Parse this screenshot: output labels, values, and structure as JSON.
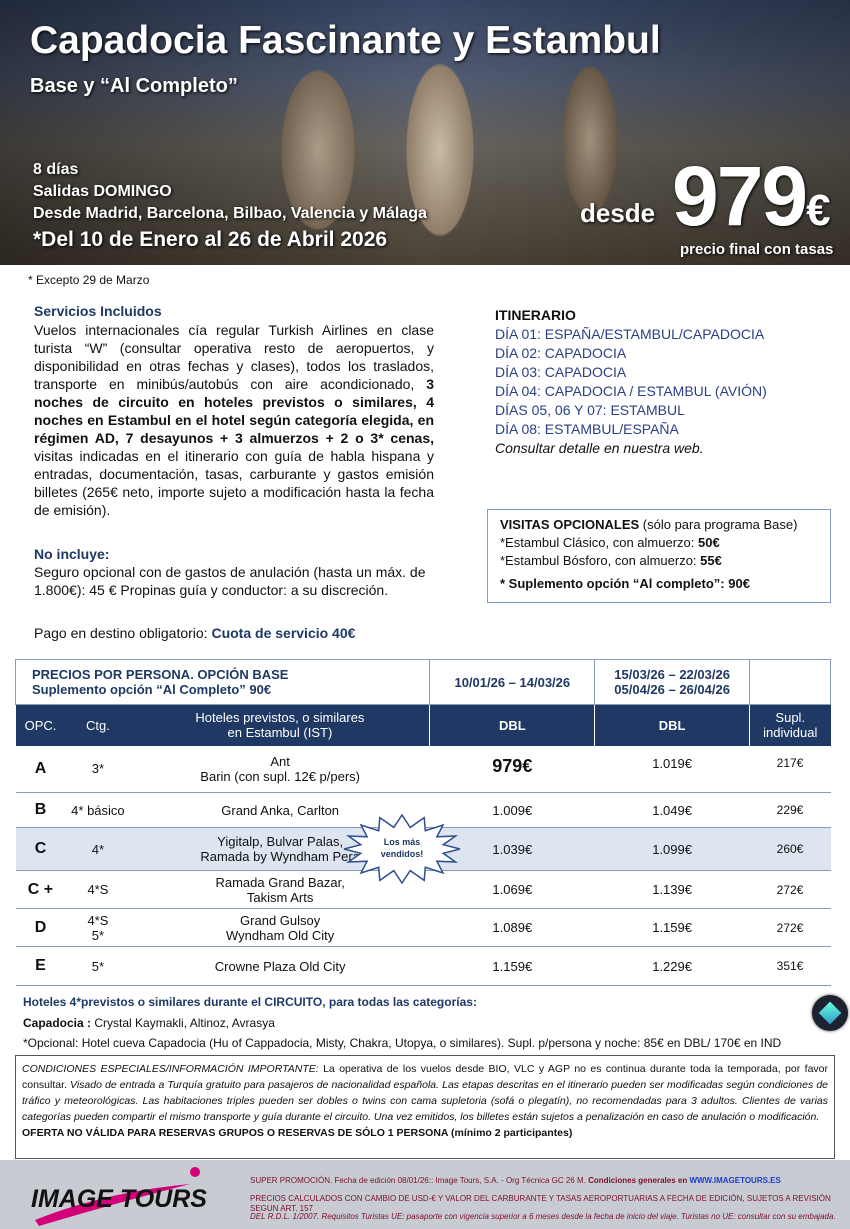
{
  "hero": {
    "title": "Capadocia Fascinante y Estambul",
    "subtitle": "Base y “Al Completo”",
    "duration": "8 días",
    "departures": "Salidas DOMINGO",
    "origins": "Desde Madrid, Barcelona, Bilbao, Valencia y Málaga",
    "dates": "*Del 10 de Enero al 26 de Abril 2026",
    "from_label": "desde",
    "price": "979",
    "currency": "€",
    "price_note": "precio final con tasas"
  },
  "except_note": "* Excepto 29 de Marzo",
  "services": {
    "heading": "Servicios Incluidos",
    "text1": "Vuelos internacionales cía regular Turkish Airlines en clase turista “W” (consultar operativa resto de aeropuertos, y disponibilidad en otras fechas y clases), todos los traslados, transporte en minibús/autobús con aire acondicionado, ",
    "bold": "3 noches de circuito en hoteles previstos o similares, 4 noches en Estambul en el hotel según categoría elegida, en régimen AD, 7 desayunos + 3 almuerzos + 2 o 3* cenas,",
    "text2": " visitas indicadas en el itinerario con guía de habla hispana y entradas, documentación, tasas, carburante y gastos emisión billetes (265€ neto, importe sujeto a modificación hasta la fecha de emisión)."
  },
  "not_included": {
    "heading": "No incluye:",
    "text": "Seguro opcional con de gastos de anulación (hasta un máx. de 1.800€): 45 €  Propinas guía y conductor: a su discreción."
  },
  "payment": {
    "label": "Pago en destino obligatorio: ",
    "value": "Cuota de servicio 40€"
  },
  "itinerary": {
    "heading": "ITINERARIO",
    "days": [
      "DÍA 01: ESPAÑA/ESTAMBUL/CAPADOCIA",
      "DÍA 02: CAPADOCIA",
      "DÍA 03: CAPADOCIA",
      "DÍA 04: CAPADOCIA / ESTAMBUL (AVIÓN)",
      "DÍAS 05, 06 Y 07: ESTAMBUL",
      "DÍA 08: ESTAMBUL/ESPAÑA"
    ],
    "note": "Consultar detalle en nuestra web."
  },
  "optional": {
    "heading": "VISITAS OPCIONALES",
    "heading_note": " (sólo para programa Base)",
    "items": [
      {
        "label": "*Estambul Clásico, con almuerzo: ",
        "price": "50€"
      },
      {
        "label": "*Estambul Bósforo, con almuerzo: ",
        "price": "55€"
      }
    ],
    "supplement": "* Suplemento opción “Al completo”: 90€"
  },
  "prices": {
    "title1": "PRECIOS POR PERSONA. OPCIÓN BASE",
    "title2": "Suplemento opción “Al Completo” 90€",
    "period1": "10/01/26 – 14/03/26",
    "period2a": "15/03/26 – 22/03/26",
    "period2b": "05/04/26 – 26/04/26",
    "headers": {
      "opc": "OPC.",
      "ctg": "Ctg.",
      "hotels1": "Hoteles previstos, o similares",
      "hotels2": "en Estambul (IST)",
      "dbl1": "DBL",
      "dbl2": "DBL",
      "supl1": "Supl.",
      "supl2": "individual"
    },
    "badge": "Los más vendidos!",
    "rows": [
      {
        "opc": "A",
        "ctg": "3*",
        "h1": "Ant",
        "h2": "Barin (con supl. 12€ p/pers)",
        "p1": "979€",
        "p2": "1.019€",
        "s": "217€"
      },
      {
        "opc": "B",
        "ctg": "4* básico",
        "h1": "Grand Anka, Carlton",
        "h2": "",
        "p1": "1.009€",
        "p2": "1.049€",
        "s": "229€"
      },
      {
        "opc": "C",
        "ctg": "4*",
        "h1": "Yigitalp, Bulvar Palas,",
        "h2": "Ramada by Wyndham Pera",
        "p1": "1.039€",
        "p2": "1.099€",
        "s": "260€"
      },
      {
        "opc": "C +",
        "ctg": "4*S",
        "h1": "Ramada Grand Bazar,",
        "h2": "Takism Arts",
        "p1": "1.069€",
        "p2": "1.139€",
        "s": "272€"
      },
      {
        "opc": "D",
        "ctg": "4*S\n5*",
        "h1": "Grand Gulsoy",
        "h2": "Wyndham Old City",
        "p1": "1.089€",
        "p2": "1.159€",
        "s": "272€"
      },
      {
        "opc": "E",
        "ctg": "5*",
        "h1": "Crowne Plaza Old City",
        "h2": "",
        "p1": "1.159€",
        "p2": "1.229€",
        "s": "351€"
      }
    ]
  },
  "circuit": {
    "heading": "Hoteles 4*previstos o similares durante el CIRCUITO, para todas las categorías:",
    "cap_label": "Capadocia : ",
    "cap_hotels": "Crystal Kaymakli, Altinoz, Avrasya",
    "optional": "*Opcional: Hotel cueva Capadocia (Hu of Cappadocia, Misty, Chakra, Utopya, o similares). Supl. p/persona y noche:  85€ en DBL/ 170€ en IND"
  },
  "conditions": {
    "lead": "CONDICIONES ESPECIALES/INFORMACIÓN IMPORTANTE:",
    "text1": " La operativa de los vuelos desde BIO, VLC y AGP no es continua durante toda la temporada, por favor consultar. ",
    "text2": "Visado de entrada a Turquía gratuito para pasajeros de nacionalidad española. Las etapas descritas en el itinerario pueden ser modificadas según condiciones de tráfico y meteorológicas. Las habitaciones triples pueden ser dobles o twins con cama supletoria (sofá o plegatín), no recomendadas para 3 adultos. Clientes de varias categorías pueden compartir el mismo transporte y guía durante el circuito. Una vez emitidos, los billetes están sujetos a penalización en caso de anulación o modificación.",
    "warning": "OFERTA NO VÁLIDA PARA RESERVAS GRUPOS O RESERVAS DE SÓLO 1 PERSONA (mínimo 2 participantes)"
  },
  "footer": {
    "logo": "IMAGE TOURS",
    "line1": "SUPER PROMOCIÓN. Fecha de edición 08/01/26::  Image Tours, S.A.  -  Org Técnica GC 26 M. ",
    "line1_bold": "Condiciones generales en ",
    "link": "WWW.IMAGETOURS.ES",
    "line2": "PRECIOS CALCULADOS CON CAMBIO DE USD-€ Y VALOR DEL CARBURANTE Y TASAS AEROPORTUARIAS A FECHA DE EDICIÓN, SUJETOS A REVISIÓN SEGUN ART. 157",
    "line3": "DEL R.D.L. 1/2007. Requisitos Turistas UE: pasaporte con vigencia superior a 6 meses desde la fecha de inicio del viaje. Turistas no UE: consultar con su embajada."
  },
  "colors": {
    "navy": "#1f3864",
    "highlight_row": "#dde5f0",
    "brand_pink": "#d4007a"
  }
}
